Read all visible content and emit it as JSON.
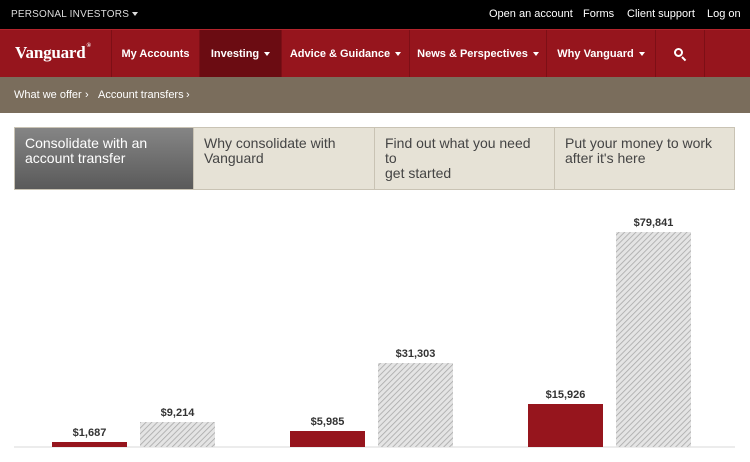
{
  "topbar": {
    "personal_investors": "PERSONAL INVESTORS",
    "links": [
      "Open an account",
      "Forms",
      "Client support",
      "Log on"
    ]
  },
  "nav": {
    "logo": "Vanguard",
    "logo_mark": "®",
    "items": [
      "My Accounts",
      "Investing",
      "Advice & Guidance",
      "News & Perspectives",
      "Why Vanguard"
    ],
    "active": "Investing",
    "search_icon": "search-icon"
  },
  "breadcrumb": [
    "What we offer",
    "Account transfers"
  ],
  "tabs": [
    {
      "line1": "Consolidate with an",
      "line2": "account transfer",
      "active": true
    },
    {
      "line1": "Why consolidate with",
      "line2": "Vanguard",
      "active": false
    },
    {
      "line1": "Find out what you need to",
      "line2": "get started",
      "active": false
    },
    {
      "line1": "Put your money to work",
      "line2": "after it's here",
      "active": false
    }
  ],
  "colors": {
    "brand_red": "#96151d",
    "nav_active": "#6b0c12",
    "breadcrumb_bg": "#7a6d5c",
    "bar_red": "#96151d",
    "bar_hatch": "#bfbfbf"
  },
  "chart_data": {
    "type": "bar",
    "categories": [
      "",
      "",
      ""
    ],
    "series": [
      {
        "values": [
          1687,
          5985,
          15926
        ],
        "color": "#96151d"
      },
      {
        "values": [
          9214,
          31303,
          79841
        ],
        "color": "hatched-gray"
      }
    ],
    "labels": [
      [
        "$1,687",
        "$9,214"
      ],
      [
        "$5,985",
        "$31,303"
      ],
      [
        "$15,926",
        "$79,841"
      ]
    ],
    "ylim": [
      0,
      79841
    ],
    "grid": false
  }
}
